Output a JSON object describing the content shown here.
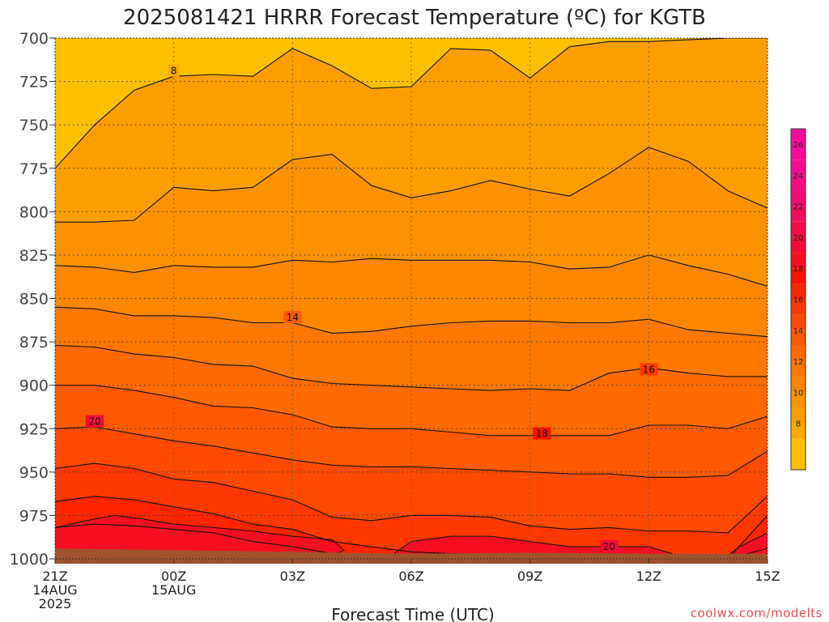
{
  "title": "2025081421 HRRR Forecast Temperature (ºC) for KGTB",
  "xlabel": "Forecast Time (UTC)",
  "credit": "coolwx.com/modelts",
  "chart_data": {
    "type": "contour",
    "title": "2025081421 HRRR Forecast Temperature (ºC) for KGTB",
    "xlabel": "Forecast Time (UTC)",
    "ylabel": "",
    "y_axis": {
      "ticks": [
        700,
        725,
        750,
        775,
        800,
        825,
        850,
        875,
        900,
        925,
        950,
        975,
        1000
      ],
      "range": [
        1000,
        700
      ],
      "inverted": true
    },
    "x_axis": {
      "ticks": [
        {
          "hour": 0,
          "lines": [
            "21Z",
            "14AUG",
            "2025"
          ]
        },
        {
          "hour": 3,
          "lines": [
            "00Z",
            "15AUG"
          ]
        },
        {
          "hour": 6,
          "lines": [
            "03Z"
          ]
        },
        {
          "hour": 9,
          "lines": [
            "06Z"
          ]
        },
        {
          "hour": 12,
          "lines": [
            "09Z"
          ]
        },
        {
          "hour": 15,
          "lines": [
            "12Z"
          ]
        },
        {
          "hour": 18,
          "lines": [
            "15Z"
          ]
        }
      ],
      "range": [
        0,
        18
      ]
    },
    "grid": true,
    "colorbar": {
      "ticks": [
        8,
        10,
        12,
        14,
        16,
        18,
        20,
        22,
        24,
        26
      ],
      "levels": [
        6,
        8,
        9,
        10,
        11,
        12,
        13,
        14,
        15,
        16,
        17,
        18,
        19,
        20,
        21,
        22,
        23,
        24,
        25,
        26,
        28
      ],
      "colors": [
        "#fdc000",
        "#fdaa00",
        "#fd9e00",
        "#fd9200",
        "#fd8600",
        "#fd7800",
        "#fd6a00",
        "#fd5a00",
        "#fd4a00",
        "#fd3800",
        "#fd2400",
        "#fd1000",
        "#f80e22",
        "#f50c36",
        "#f30c4a",
        "#f20c5e",
        "#f30c70",
        "#f30c80",
        "#f50c8e",
        "#f60c9a"
      ]
    },
    "x": [
      0,
      1,
      2,
      3,
      4,
      5,
      6,
      7,
      8,
      9,
      10,
      11,
      12,
      13,
      14,
      15,
      16,
      17,
      18
    ],
    "isotherms": [
      {
        "level": 8,
        "boundary_below": 9,
        "label": "8",
        "label_hour": 3,
        "pressure": [
          775,
          750,
          730,
          722,
          721,
          722,
          706,
          716,
          729,
          728,
          706,
          707,
          723,
          705,
          702,
          702,
          701,
          700,
          700
        ]
      },
      {
        "level": 9,
        "boundary_below": 10,
        "label": "",
        "pressure": [
          806,
          806,
          805,
          786,
          788,
          786,
          770,
          767,
          785,
          792,
          788,
          782,
          787,
          791,
          778,
          763,
          771,
          788,
          798
        ]
      },
      {
        "level": 10,
        "boundary_below": 11,
        "label": "",
        "pressure": [
          831,
          832,
          835,
          831,
          832,
          832,
          828,
          829,
          827,
          828,
          828,
          828,
          829,
          833,
          832,
          825,
          831,
          836,
          843
        ]
      },
      {
        "level": 11,
        "boundary_below": 12,
        "label": "",
        "pressure": [
          855,
          856,
          860,
          860,
          861,
          864,
          864,
          870,
          869,
          866,
          864,
          863,
          863,
          864,
          864,
          862,
          868,
          870,
          872
        ]
      },
      {
        "level": 12,
        "boundary_below": 13,
        "label": "",
        "pressure": [
          877,
          878,
          882,
          884,
          888,
          889,
          896,
          899,
          900,
          901,
          902,
          903,
          902,
          903,
          893,
          890,
          893,
          895,
          895
        ]
      },
      {
        "level": 13,
        "boundary_below": 14,
        "label": "14",
        "label_hour": 6,
        "pressure": [
          900,
          900,
          903,
          907,
          912,
          913,
          917,
          924,
          925,
          925,
          927,
          929,
          929,
          929,
          929,
          923,
          923,
          925,
          918
        ]
      },
      {
        "level": 14,
        "boundary_below": 15,
        "label": "",
        "pressure": [
          925,
          924,
          928,
          932,
          935,
          939,
          943,
          946,
          947,
          947,
          948,
          949,
          950,
          951,
          951,
          953,
          953,
          952,
          938
        ]
      },
      {
        "level": 15,
        "boundary_below": 16,
        "label": "",
        "pressure": [
          948,
          945,
          948,
          954,
          956,
          961,
          966,
          976,
          978,
          975,
          975,
          976,
          981,
          983,
          982,
          984,
          984,
          985,
          964
        ]
      },
      {
        "level": 16,
        "boundary_below": 17,
        "label": "",
        "pressure": [
          967,
          964,
          966,
          970,
          974,
          980,
          983,
          990,
          993,
          996,
          997,
          997,
          998,
          998,
          997,
          998,
          998,
          1000,
          975
        ]
      },
      {
        "level": 17,
        "boundary_below": 18,
        "label": "",
        "pressure": [
          982,
          980,
          981,
          983,
          985,
          990,
          993,
          997,
          999,
          1000,
          1000,
          1000,
          1000,
          1000,
          1000,
          1000,
          1000,
          1000,
          994
        ]
      }
    ],
    "labels": [
      {
        "text": "8",
        "hour": 3,
        "pressure": 719
      },
      {
        "text": "14",
        "hour": 6,
        "pressure": 861
      },
      {
        "text": "16",
        "hour": 15,
        "pressure": 891
      },
      {
        "text": "18",
        "hour": 12.3,
        "pressure": 928
      },
      {
        "text": "20",
        "hour": 1,
        "pressure": 921
      },
      {
        "text": "20",
        "hour": 14,
        "pressure": 993
      }
    ]
  }
}
